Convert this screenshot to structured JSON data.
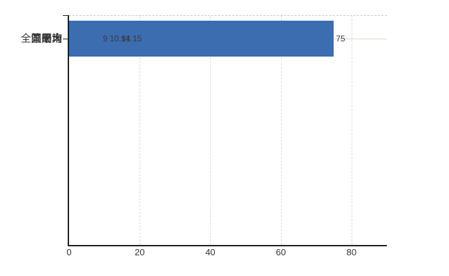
{
  "chart_data": {
    "type": "bar",
    "orientation": "horizontal",
    "title": "",
    "categories": [
      "笠間市",
      "県平均",
      "県最大",
      "全国平均"
    ],
    "values": [
      9,
      10.91,
      75,
      14.15
    ],
    "value_labels": [
      "9",
      "10.91",
      "75",
      "14.15"
    ],
    "bar_colors": [
      "#ED9237",
      "#3B6DB0",
      "#3B6DB0",
      "#3B6DB0"
    ],
    "xlim": [
      0,
      90
    ],
    "x_tick_values": [
      0,
      20,
      40,
      60,
      80
    ],
    "x_tick_labels": [
      "0",
      "20",
      "40",
      "60",
      "80"
    ],
    "grid": true,
    "legend": "none",
    "colors": {
      "background": "#FFFFFF",
      "axis": "#1F1F1F",
      "horizontal_gridline": "#D5DBCF",
      "vertical_gridline": "#D9D9D9",
      "top_border": "#C9C9C9",
      "category_text": "#333333",
      "value_text": "#3C3C3C",
      "tick_text": "#333333",
      "highlight_bar": "#ED9237",
      "default_bar": "#3B6DB0"
    }
  }
}
